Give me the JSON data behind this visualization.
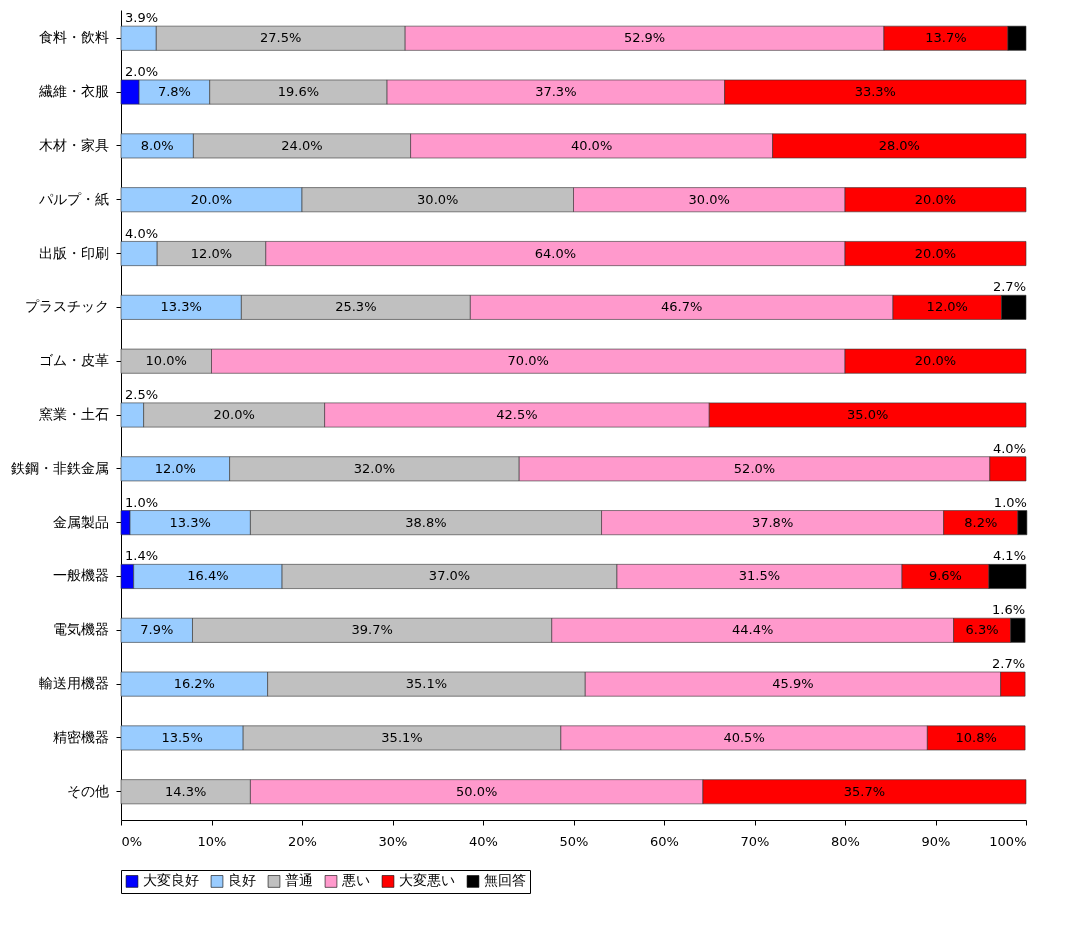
{
  "chart_data": {
    "type": "bar",
    "orientation": "horizontal",
    "stacked": true,
    "categories": [
      "食料・飲料",
      "繊維・衣服",
      "木材・家具",
      "パルプ・紙",
      "出版・印刷",
      "プラスチック",
      "ゴム・皮革",
      "窯業・土石",
      "鉄鋼・非鉄金属",
      "金属製品",
      "一般機器",
      "電気機器",
      "輸送用機器",
      "精密機器",
      "その他"
    ],
    "series": [
      {
        "name": "大変良好",
        "color": "#0000ff",
        "values": [
          null,
          2.0,
          null,
          null,
          null,
          null,
          null,
          null,
          null,
          1.0,
          1.4,
          null,
          null,
          null,
          null
        ],
        "value_labels": [
          null,
          "2.0%",
          null,
          null,
          null,
          null,
          null,
          null,
          null,
          "1.0%",
          "1.4%",
          null,
          null,
          null,
          null
        ]
      },
      {
        "name": "良好",
        "color": "#99ccff",
        "values": [
          3.9,
          7.8,
          8.0,
          20.0,
          4.0,
          13.3,
          null,
          2.5,
          12.0,
          13.3,
          16.4,
          7.9,
          16.2,
          13.5,
          null
        ],
        "value_labels": [
          "3.9%",
          "7.8%",
          "8.0%",
          "20.0%",
          "4.0%",
          "13.3%",
          null,
          "2.5%",
          "12.0%",
          "13.3%",
          "16.4%",
          "7.9%",
          "16.2%",
          "13.5%",
          null
        ]
      },
      {
        "name": "普通",
        "color": "#c0c0c0",
        "values": [
          27.5,
          19.6,
          24.0,
          30.0,
          12.0,
          25.3,
          10.0,
          20.0,
          32.0,
          38.8,
          37.0,
          39.7,
          35.1,
          35.1,
          14.3
        ],
        "value_labels": [
          "27.5%",
          "19.6%",
          "24.0%",
          "30.0%",
          "12.0%",
          "25.3%",
          "10.0%",
          "20.0%",
          "32.0%",
          "38.8%",
          "37.0%",
          "39.7%",
          "35.1%",
          "35.1%",
          "14.3%"
        ]
      },
      {
        "name": "悪い",
        "color": "#ff99cc",
        "values": [
          52.9,
          37.3,
          40.0,
          30.0,
          64.0,
          46.7,
          70.0,
          42.5,
          52.0,
          37.8,
          31.5,
          44.4,
          45.9,
          40.5,
          50.0
        ],
        "value_labels": [
          "52.9%",
          "37.3%",
          "40.0%",
          "30.0%",
          "64.0%",
          "46.7%",
          "70.0%",
          "42.5%",
          "52.0%",
          "37.8%",
          "31.5%",
          "44.4%",
          "45.9%",
          "40.5%",
          "50.0%"
        ]
      },
      {
        "name": "大変悪い",
        "color": "#ff0000",
        "values": [
          13.7,
          33.3,
          28.0,
          20.0,
          20.0,
          12.0,
          20.0,
          35.0,
          4.0,
          8.2,
          9.6,
          6.3,
          2.7,
          10.8,
          35.7
        ],
        "value_labels": [
          "13.7%",
          "33.3%",
          "28.0%",
          "20.0%",
          "20.0%",
          "12.0%",
          "20.0%",
          "35.0%",
          "4.0%",
          "8.2%",
          "9.6%",
          "6.3%",
          "2.7%",
          "10.8%",
          "35.7%"
        ]
      },
      {
        "name": "無回答",
        "color": "#000000",
        "values": [
          2.0,
          null,
          null,
          null,
          null,
          2.7,
          null,
          null,
          null,
          1.0,
          4.1,
          1.6,
          null,
          null,
          null
        ],
        "value_labels": [
          null,
          null,
          null,
          null,
          null,
          "2.7%",
          null,
          null,
          null,
          "1.0%",
          "4.1%",
          "1.6%",
          null,
          null,
          null
        ]
      }
    ],
    "xlim": [
      0,
      100
    ],
    "xticks": [
      {
        "value": 0,
        "label": "0%"
      },
      {
        "value": 10,
        "label": "10%"
      },
      {
        "value": 20,
        "label": "20%"
      },
      {
        "value": 30,
        "label": "30%"
      },
      {
        "value": 40,
        "label": "40%"
      },
      {
        "value": 50,
        "label": "50%"
      },
      {
        "value": 60,
        "label": "60%"
      },
      {
        "value": 70,
        "label": "70%"
      },
      {
        "value": 80,
        "label": "80%"
      },
      {
        "value": 90,
        "label": "90%"
      },
      {
        "value": 100,
        "label": "100%"
      }
    ],
    "grid": false,
    "legend": "bottom"
  }
}
